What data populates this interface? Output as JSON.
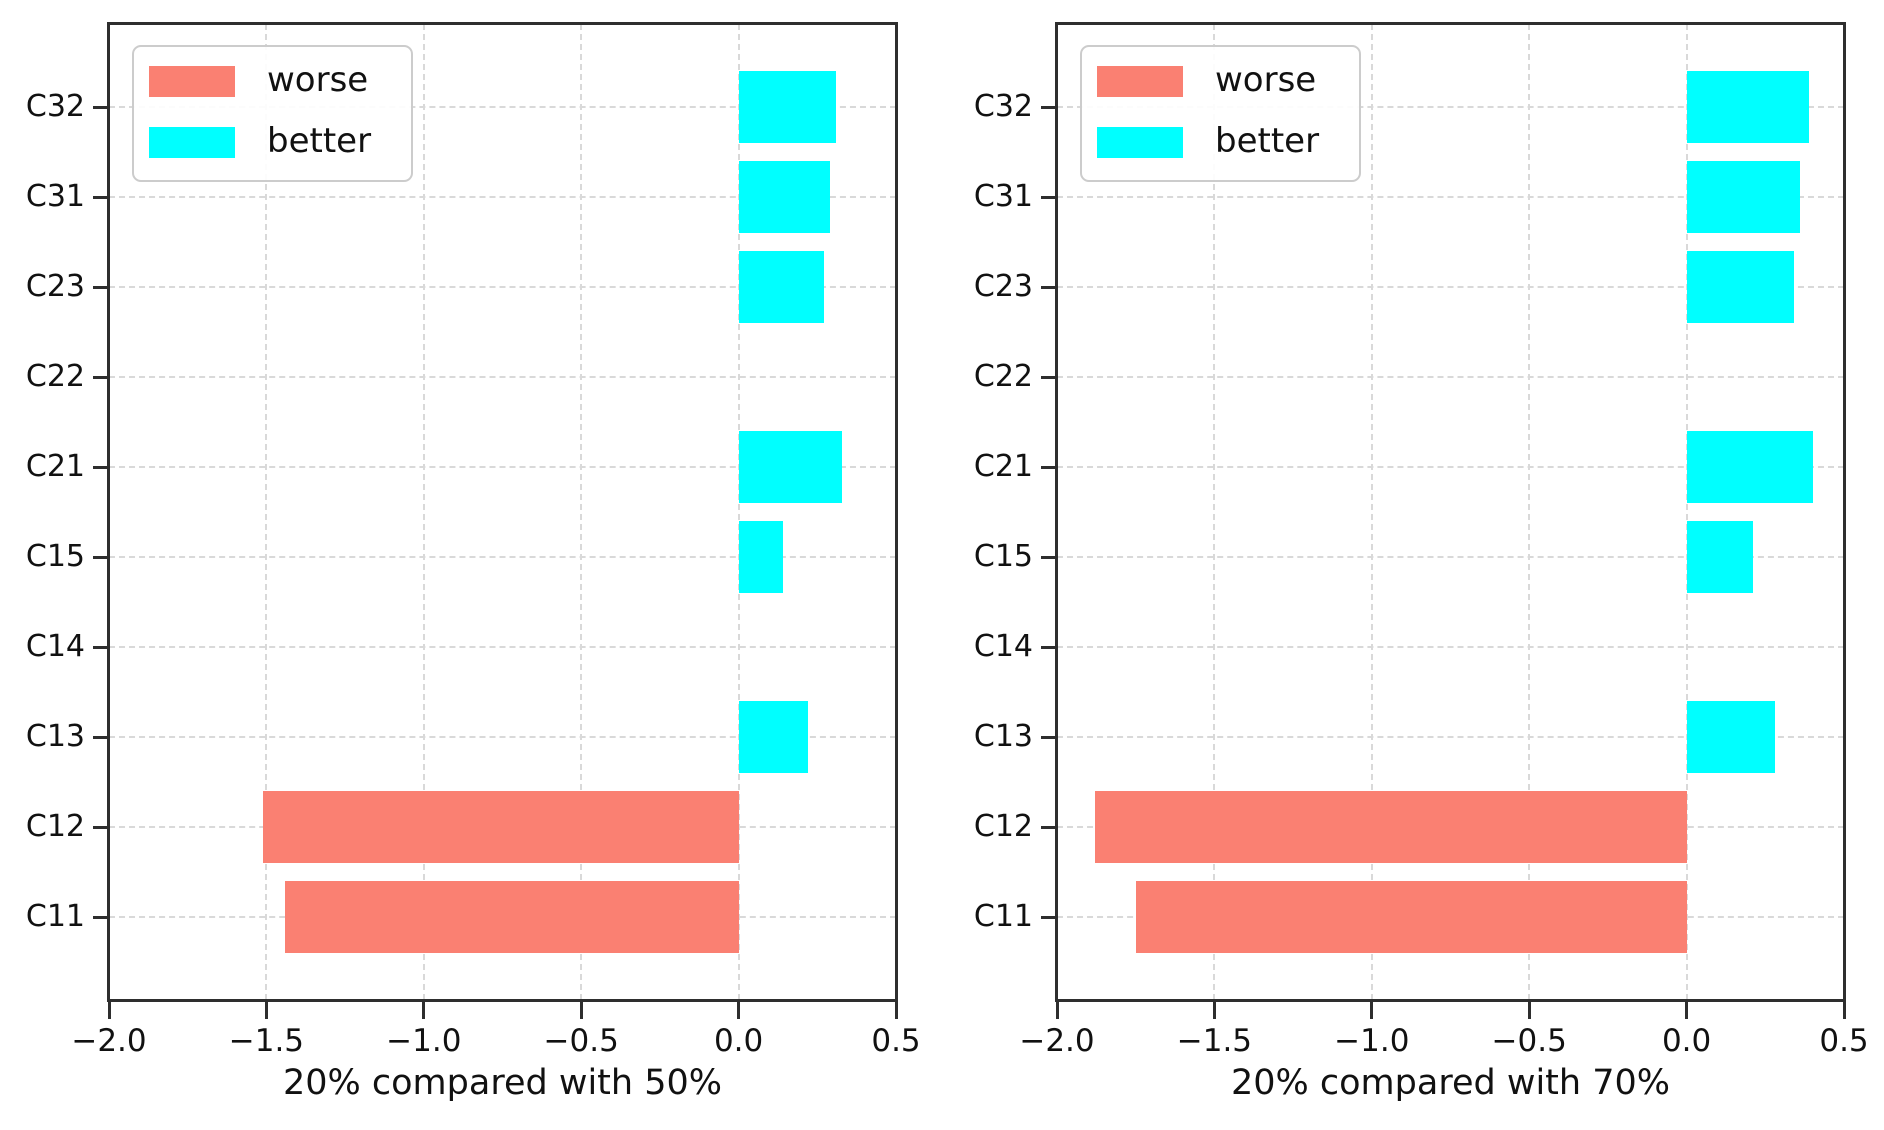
{
  "figure": {
    "background": "#ffffff",
    "colors": {
      "worse": "#FA8072",
      "better": "#00FFFF",
      "grid": "#D9D9D9",
      "spine": "#2E2E2E",
      "text": "#111111",
      "legend_border": "#CCCCCC"
    },
    "legend": {
      "position": "upper left",
      "items": [
        {
          "label": "worse",
          "color_key": "worse"
        },
        {
          "label": "better",
          "color_key": "better"
        }
      ]
    }
  },
  "chart_data": [
    {
      "type": "bar",
      "orientation": "horizontal",
      "title": "",
      "xlabel": "20% compared with 50%",
      "ylabel": "",
      "categories": [
        "C11",
        "C12",
        "C13",
        "C14",
        "C15",
        "C21",
        "C22",
        "C23",
        "C31",
        "C32"
      ],
      "values": [
        -1.44,
        -1.51,
        0.22,
        0,
        0.14,
        0.33,
        0,
        0.27,
        0.29,
        0.31
      ],
      "xlim": [
        -2.0,
        0.5
      ],
      "xticks": [
        -2.0,
        -1.5,
        -1.0,
        -0.5,
        0.0,
        0.5
      ],
      "xtick_labels": [
        "−2.0",
        "−1.5",
        "−1.0",
        "−0.5",
        "0.0",
        "0.5"
      ],
      "grid": true,
      "legend": [
        "worse",
        "better"
      ],
      "color_rule": "negative bars use worse color, positive bars use better color"
    },
    {
      "type": "bar",
      "orientation": "horizontal",
      "title": "",
      "xlabel": "20% compared with 70%",
      "ylabel": "",
      "categories": [
        "C11",
        "C12",
        "C13",
        "C14",
        "C15",
        "C21",
        "C22",
        "C23",
        "C31",
        "C32"
      ],
      "values": [
        -1.75,
        -1.88,
        0.28,
        0,
        0.21,
        0.4,
        0,
        0.34,
        0.36,
        0.39
      ],
      "xlim": [
        -2.0,
        0.5
      ],
      "xticks": [
        -2.0,
        -1.5,
        -1.0,
        -0.5,
        0.0,
        0.5
      ],
      "xtick_labels": [
        "−2.0",
        "−1.5",
        "−1.0",
        "−0.5",
        "0.0",
        "0.5"
      ],
      "grid": true,
      "legend": [
        "worse",
        "better"
      ],
      "color_rule": "negative bars use worse color, positive bars use better color"
    }
  ]
}
